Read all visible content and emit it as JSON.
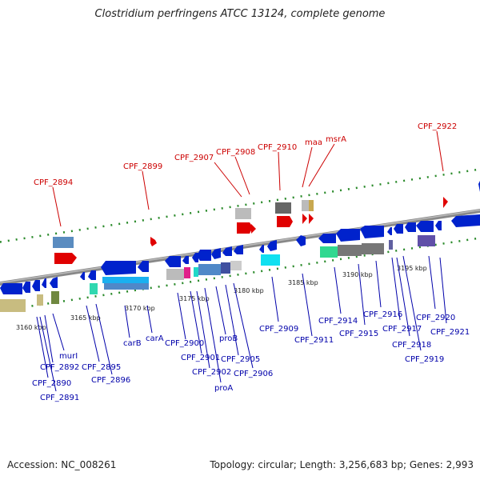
{
  "title": "Clostridium perfringens ATCC 13124, complete genome",
  "footer": {
    "accession": "Accession: NC_008261",
    "topology": "Topology: circular; Length: 3,256,683 bp; Genes: 2,993"
  },
  "colors": {
    "label_red": "#cc0000",
    "label_blue": "#0000aa",
    "tick_green": "#2a8a2a",
    "backbone": "#888888"
  },
  "scale_labels": [
    "3160 kbp",
    "3165 kbp",
    "3170 kbp",
    "3175 kbp",
    "3180 kbp",
    "3185 kbp",
    "3190 kbp",
    "3195 kbp"
  ],
  "forward_labels": [
    "CPF_2894",
    "CPF_2899",
    "CPF_2907",
    "CPF_2908",
    "CPF_2910",
    "maa",
    "msrA",
    "CPF_2922"
  ],
  "reverse_labels": [
    "murI",
    "CPF_2892",
    "CPF_2890",
    "CPF_2891",
    "CPF_2895",
    "CPF_2896",
    "carB",
    "carA",
    "CPF_2900",
    "CPF_2901",
    "CPF_2902",
    "proA",
    "proB",
    "CPF_2905",
    "CPF_2906",
    "CPF_2909",
    "CPF_2911",
    "CPF_2914",
    "CPF_2915",
    "CPF_2916",
    "CPF_2917",
    "CPF_2918",
    "CPF_2919",
    "CPF_2920",
    "CPF_2921"
  ]
}
